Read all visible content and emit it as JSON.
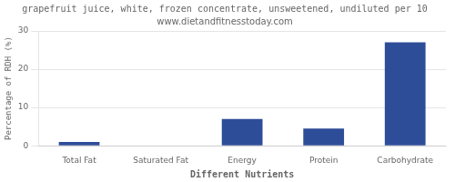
{
  "chart_data": {
    "type": "bar",
    "title": "grapefruit juice, white, frozen concentrate, unsweetened, undiluted per 10",
    "subtitle": "www.dietandfitnesstoday.com",
    "xlabel": "Different Nutrients",
    "ylabel": "Percentage of RDH (%)",
    "categories": [
      "Total Fat",
      "Saturated Fat",
      "Energy",
      "Protein",
      "Carbohydrate"
    ],
    "values": [
      1.0,
      0.0,
      7.0,
      4.5,
      27.0
    ],
    "color": "#2e4d99",
    "ylim": [
      0,
      30
    ],
    "yticks": [
      0,
      10,
      20,
      30
    ],
    "grid": true
  }
}
